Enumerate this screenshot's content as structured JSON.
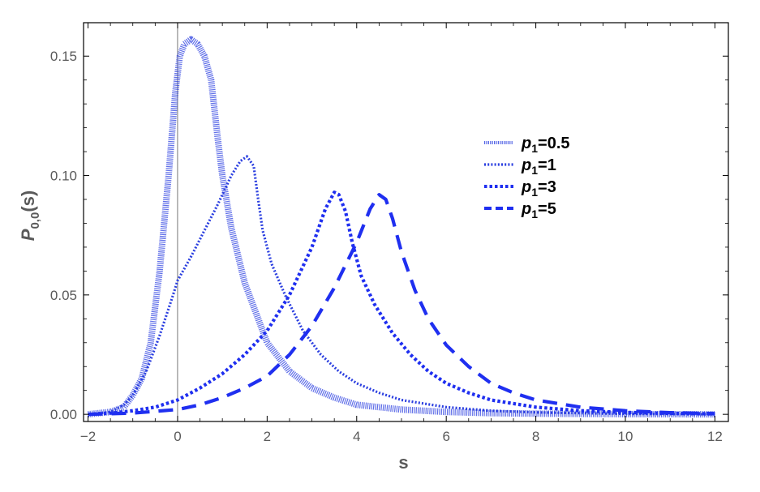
{
  "chart_data": {
    "type": "line",
    "xlabel": "s",
    "ylabel_main": "P",
    "ylabel_sub": "0,0",
    "ylabel_tail": "(s)",
    "xlim": [
      -2.1,
      12.3
    ],
    "ylim": [
      -0.003,
      0.164
    ],
    "x_ticks": [
      -2,
      0,
      2,
      4,
      6,
      8,
      10,
      12
    ],
    "x_tick_labels": [
      "−2",
      "0",
      "2",
      "4",
      "6",
      "8",
      "10",
      "12"
    ],
    "y_ticks": [
      0.0,
      0.05,
      0.1,
      0.15
    ],
    "y_tick_labels": [
      "0.00",
      "0.05",
      "0.10",
      "0.15"
    ],
    "legend_position": "top-right",
    "series": [
      {
        "name": "p",
        "name_sub": "1",
        "name_tail": "=0.5",
        "color": "#2b3fe0",
        "style": "hatched-thin",
        "points": [
          [
            -2,
            0
          ],
          [
            -1.5,
            0.001
          ],
          [
            -1.2,
            0.003
          ],
          [
            -1,
            0.008
          ],
          [
            -0.8,
            0.015
          ],
          [
            -0.6,
            0.03
          ],
          [
            -0.4,
            0.06
          ],
          [
            -0.2,
            0.1
          ],
          [
            -0.05,
            0.135
          ],
          [
            0.05,
            0.15
          ],
          [
            0.15,
            0.155
          ],
          [
            0.3,
            0.157
          ],
          [
            0.45,
            0.155
          ],
          [
            0.6,
            0.15
          ],
          [
            0.75,
            0.14
          ],
          [
            0.9,
            0.115
          ],
          [
            1.0,
            0.1
          ],
          [
            1.2,
            0.078
          ],
          [
            1.5,
            0.055
          ],
          [
            2,
            0.03
          ],
          [
            2.5,
            0.018
          ],
          [
            3,
            0.011
          ],
          [
            3.5,
            0.007
          ],
          [
            4,
            0.004
          ],
          [
            5,
            0.002
          ],
          [
            6,
            0.001
          ],
          [
            7,
            0.0005
          ],
          [
            8,
            0.0003
          ],
          [
            10,
            0.0001
          ],
          [
            12,
            0
          ]
        ]
      },
      {
        "name": "p",
        "name_sub": "1",
        "name_tail": "=1",
        "color": "#2b3fe0",
        "style": "dotted-small",
        "points": [
          [
            -2,
            0
          ],
          [
            -1.5,
            0.001
          ],
          [
            -1.2,
            0.004
          ],
          [
            -1,
            0.008
          ],
          [
            -0.7,
            0.018
          ],
          [
            -0.4,
            0.033
          ],
          [
            -0.1,
            0.05
          ],
          [
            0,
            0.056
          ],
          [
            0.3,
            0.066
          ],
          [
            0.6,
            0.077
          ],
          [
            0.9,
            0.088
          ],
          [
            1.2,
            0.1
          ],
          [
            1.4,
            0.106
          ],
          [
            1.55,
            0.108
          ],
          [
            1.7,
            0.104
          ],
          [
            1.8,
            0.09
          ],
          [
            1.9,
            0.077
          ],
          [
            2.1,
            0.063
          ],
          [
            2.4,
            0.05
          ],
          [
            2.8,
            0.035
          ],
          [
            3.2,
            0.025
          ],
          [
            3.6,
            0.018
          ],
          [
            4,
            0.013
          ],
          [
            4.5,
            0.009
          ],
          [
            5,
            0.006
          ],
          [
            6,
            0.003
          ],
          [
            7,
            0.0015
          ],
          [
            8,
            0.0008
          ],
          [
            10,
            0.0002
          ],
          [
            12,
            0
          ]
        ]
      },
      {
        "name": "p",
        "name_sub": "1",
        "name_tail": "=3",
        "color": "#1f2ff0",
        "style": "dotted-bold",
        "points": [
          [
            -2,
            0
          ],
          [
            -1.5,
            0.0005
          ],
          [
            -1,
            0.0015
          ],
          [
            -0.5,
            0.003
          ],
          [
            0,
            0.006
          ],
          [
            0.5,
            0.011
          ],
          [
            1,
            0.017
          ],
          [
            1.5,
            0.025
          ],
          [
            2,
            0.035
          ],
          [
            2.5,
            0.05
          ],
          [
            3,
            0.07
          ],
          [
            3.3,
            0.086
          ],
          [
            3.5,
            0.093
          ],
          [
            3.6,
            0.092
          ],
          [
            3.75,
            0.085
          ],
          [
            3.9,
            0.072
          ],
          [
            4.1,
            0.058
          ],
          [
            4.4,
            0.046
          ],
          [
            4.8,
            0.034
          ],
          [
            5.2,
            0.025
          ],
          [
            5.6,
            0.018
          ],
          [
            6,
            0.013
          ],
          [
            6.5,
            0.009
          ],
          [
            7,
            0.006
          ],
          [
            8,
            0.003
          ],
          [
            9,
            0.0015
          ],
          [
            10,
            0.0008
          ],
          [
            11,
            0.0004
          ],
          [
            12,
            0.0002
          ]
        ]
      },
      {
        "name": "p",
        "name_sub": "1",
        "name_tail": "=5",
        "color": "#1f2ff0",
        "style": "dashed-bold",
        "points": [
          [
            -2,
            0
          ],
          [
            -1,
            0.0005
          ],
          [
            0,
            0.002
          ],
          [
            0.5,
            0.004
          ],
          [
            1,
            0.007
          ],
          [
            1.5,
            0.011
          ],
          [
            2,
            0.016
          ],
          [
            2.5,
            0.025
          ],
          [
            3,
            0.037
          ],
          [
            3.5,
            0.053
          ],
          [
            4,
            0.072
          ],
          [
            4.3,
            0.086
          ],
          [
            4.5,
            0.092
          ],
          [
            4.65,
            0.09
          ],
          [
            4.8,
            0.082
          ],
          [
            5,
            0.068
          ],
          [
            5.3,
            0.052
          ],
          [
            5.6,
            0.04
          ],
          [
            6,
            0.029
          ],
          [
            6.5,
            0.02
          ],
          [
            7,
            0.013
          ],
          [
            7.5,
            0.009
          ],
          [
            8,
            0.006
          ],
          [
            9,
            0.003
          ],
          [
            10,
            0.0015
          ],
          [
            11,
            0.0007
          ],
          [
            12,
            0.0003
          ]
        ]
      }
    ]
  }
}
